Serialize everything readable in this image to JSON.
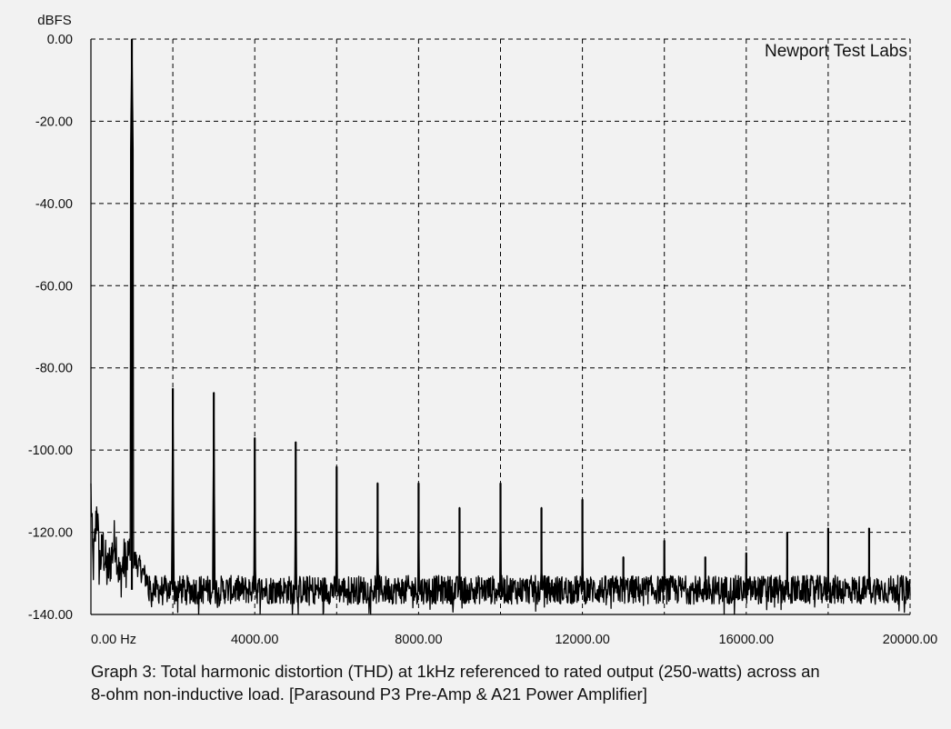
{
  "chart_data": {
    "type": "line",
    "title": "",
    "ylabel": "dBFS",
    "xlabel": "",
    "watermark": "Newport Test Labs",
    "caption_line1": "Graph 3: Total harmonic distortion (THD) at 1kHz referenced to rated output (250-watts) across an",
    "caption_line2": "8-ohm non-inductive load. [Parasound P3 Pre-Amp & A21 Power Amplifier]",
    "xlim": [
      0,
      20000
    ],
    "ylim": [
      -140,
      0
    ],
    "grid": true,
    "x_ticks": [
      {
        "value": 0,
        "label": "0.00 Hz"
      },
      {
        "value": 4000,
        "label": "4000.00"
      },
      {
        "value": 8000,
        "label": "8000.00"
      },
      {
        "value": 12000,
        "label": "12000.00"
      },
      {
        "value": 16000,
        "label": "16000.00"
      },
      {
        "value": 20000,
        "label": "20000.00"
      }
    ],
    "x_minor_gridlines": [
      2000,
      6000,
      10000,
      14000,
      18000
    ],
    "y_ticks": [
      {
        "value": 0,
        "label": "0.00"
      },
      {
        "value": -20,
        "label": "-20.00"
      },
      {
        "value": -40,
        "label": "-40.00"
      },
      {
        "value": -60,
        "label": "-60.00"
      },
      {
        "value": -80,
        "label": "-80.00"
      },
      {
        "value": -100,
        "label": "-100.00"
      },
      {
        "value": -120,
        "label": "-120.00"
      },
      {
        "value": -140,
        "label": "-140.00"
      }
    ],
    "noise_floor_db": -134,
    "low_freq_noise": [
      {
        "x": 0,
        "y": -110
      },
      {
        "x": 50,
        "y": -129
      },
      {
        "x": 100,
        "y": -122
      },
      {
        "x": 150,
        "y": -113
      },
      {
        "x": 200,
        "y": -128
      },
      {
        "x": 300,
        "y": -124
      },
      {
        "x": 400,
        "y": -130
      },
      {
        "x": 500,
        "y": -126
      },
      {
        "x": 600,
        "y": -121
      },
      {
        "x": 700,
        "y": -132
      },
      {
        "x": 800,
        "y": -127
      },
      {
        "x": 900,
        "y": -128
      }
    ],
    "series": [
      {
        "peaks": [
          {
            "x": 1000,
            "y": 0
          },
          {
            "x": 2000,
            "y": -85
          },
          {
            "x": 3000,
            "y": -86
          },
          {
            "x": 4000,
            "y": -97
          },
          {
            "x": 5000,
            "y": -98
          },
          {
            "x": 6000,
            "y": -104
          },
          {
            "x": 7000,
            "y": -108
          },
          {
            "x": 8000,
            "y": -108
          },
          {
            "x": 9000,
            "y": -114
          },
          {
            "x": 10000,
            "y": -108
          },
          {
            "x": 11000,
            "y": -114
          },
          {
            "x": 12000,
            "y": -112
          },
          {
            "x": 13000,
            "y": -126
          },
          {
            "x": 14000,
            "y": -122
          },
          {
            "x": 15000,
            "y": -126
          },
          {
            "x": 16000,
            "y": -125
          },
          {
            "x": 17000,
            "y": -120
          },
          {
            "x": 18000,
            "y": -119
          },
          {
            "x": 19000,
            "y": -119
          }
        ]
      }
    ],
    "colors": {
      "background": "#f2f2f2",
      "trace": "#000000",
      "grid": "#000000",
      "text": "#111111"
    }
  }
}
